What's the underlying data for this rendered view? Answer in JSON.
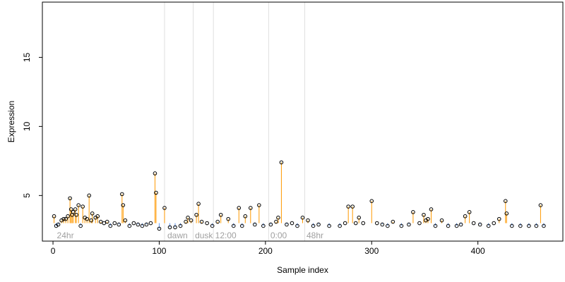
{
  "chart_data": {
    "type": "scatter",
    "title": "",
    "xlabel": "Sample index",
    "ylabel": "Expression",
    "xlim": [
      -10,
      480
    ],
    "ylim": [
      1.7,
      19
    ],
    "x_ticks": [
      0,
      100,
      200,
      300,
      400
    ],
    "y_ticks": [
      5,
      10,
      15
    ],
    "baseline": 3.0,
    "colors": {
      "above_stem": "#ff9900",
      "below_stem": "#6699ee",
      "point_edge": "#000000",
      "region_line": "#e0e0e0"
    },
    "region_labels": [
      {
        "x": 3,
        "text": "24hr"
      },
      {
        "x": 107,
        "text": "dawn"
      },
      {
        "x": 133,
        "text": "dusk"
      },
      {
        "x": 152,
        "text": "12:00"
      },
      {
        "x": 204,
        "text": "0:00"
      },
      {
        "x": 238,
        "text": "48hr"
      }
    ],
    "region_lines": [
      105,
      132,
      151,
      203,
      237
    ],
    "highlight_points": [
      {
        "x": 1,
        "y": 3.5
      },
      {
        "x": 16,
        "y": 4.8
      },
      {
        "x": 17,
        "y": 4.0
      },
      {
        "x": 19,
        "y": 3.8
      },
      {
        "x": 21,
        "y": 4.0
      },
      {
        "x": 24,
        "y": 4.3
      },
      {
        "x": 28,
        "y": 4.2
      },
      {
        "x": 34,
        "y": 5.0
      },
      {
        "x": 37,
        "y": 3.7
      },
      {
        "x": 65,
        "y": 5.1
      },
      {
        "x": 66,
        "y": 4.3
      },
      {
        "x": 96,
        "y": 6.6
      },
      {
        "x": 97,
        "y": 5.2
      },
      {
        "x": 105,
        "y": 4.1
      },
      {
        "x": 127,
        "y": 3.4
      },
      {
        "x": 135,
        "y": 3.6
      },
      {
        "x": 137,
        "y": 4.4
      },
      {
        "x": 158,
        "y": 3.6
      },
      {
        "x": 175,
        "y": 4.1
      },
      {
        "x": 181,
        "y": 3.5
      },
      {
        "x": 186,
        "y": 4.1
      },
      {
        "x": 194,
        "y": 4.3
      },
      {
        "x": 212,
        "y": 3.4
      },
      {
        "x": 215,
        "y": 7.4
      },
      {
        "x": 235,
        "y": 3.4
      },
      {
        "x": 278,
        "y": 4.2
      },
      {
        "x": 282,
        "y": 4.2
      },
      {
        "x": 300,
        "y": 4.6
      },
      {
        "x": 339,
        "y": 3.8
      },
      {
        "x": 349,
        "y": 3.6
      },
      {
        "x": 356,
        "y": 4.0
      },
      {
        "x": 388,
        "y": 3.5
      },
      {
        "x": 392,
        "y": 3.8
      },
      {
        "x": 426,
        "y": 4.6
      },
      {
        "x": 427,
        "y": 3.7
      },
      {
        "x": 459,
        "y": 4.3
      }
    ],
    "background_points": [
      {
        "x": 3,
        "y": 2.8
      },
      {
        "x": 5,
        "y": 2.9
      },
      {
        "x": 8,
        "y": 3.2
      },
      {
        "x": 10,
        "y": 3.3
      },
      {
        "x": 12,
        "y": 3.3
      },
      {
        "x": 14,
        "y": 3.5
      },
      {
        "x": 18,
        "y": 3.6
      },
      {
        "x": 22,
        "y": 3.6
      },
      {
        "x": 26,
        "y": 2.8
      },
      {
        "x": 30,
        "y": 3.4
      },
      {
        "x": 32,
        "y": 3.3
      },
      {
        "x": 36,
        "y": 3.2
      },
      {
        "x": 40,
        "y": 3.4
      },
      {
        "x": 42,
        "y": 3.5
      },
      {
        "x": 45,
        "y": 3.1
      },
      {
        "x": 48,
        "y": 3.0
      },
      {
        "x": 51,
        "y": 3.1
      },
      {
        "x": 54,
        "y": 2.8
      },
      {
        "x": 58,
        "y": 3.0
      },
      {
        "x": 62,
        "y": 2.9
      },
      {
        "x": 68,
        "y": 3.2
      },
      {
        "x": 72,
        "y": 2.8
      },
      {
        "x": 76,
        "y": 3.0
      },
      {
        "x": 80,
        "y": 2.9
      },
      {
        "x": 84,
        "y": 2.8
      },
      {
        "x": 88,
        "y": 2.9
      },
      {
        "x": 92,
        "y": 3.0
      },
      {
        "x": 100,
        "y": 2.6
      },
      {
        "x": 110,
        "y": 2.7
      },
      {
        "x": 115,
        "y": 2.7
      },
      {
        "x": 120,
        "y": 2.8
      },
      {
        "x": 125,
        "y": 3.1
      },
      {
        "x": 130,
        "y": 3.2
      },
      {
        "x": 140,
        "y": 3.1
      },
      {
        "x": 145,
        "y": 3.0
      },
      {
        "x": 150,
        "y": 2.8
      },
      {
        "x": 155,
        "y": 3.1
      },
      {
        "x": 165,
        "y": 3.3
      },
      {
        "x": 170,
        "y": 2.8
      },
      {
        "x": 178,
        "y": 2.8
      },
      {
        "x": 190,
        "y": 2.9
      },
      {
        "x": 198,
        "y": 2.8
      },
      {
        "x": 205,
        "y": 2.9
      },
      {
        "x": 210,
        "y": 3.1
      },
      {
        "x": 220,
        "y": 2.9
      },
      {
        "x": 225,
        "y": 3.0
      },
      {
        "x": 230,
        "y": 2.8
      },
      {
        "x": 240,
        "y": 3.2
      },
      {
        "x": 245,
        "y": 2.8
      },
      {
        "x": 250,
        "y": 2.9
      },
      {
        "x": 260,
        "y": 2.8
      },
      {
        "x": 270,
        "y": 2.8
      },
      {
        "x": 275,
        "y": 3.0
      },
      {
        "x": 285,
        "y": 3.0
      },
      {
        "x": 288,
        "y": 3.4
      },
      {
        "x": 292,
        "y": 3.0
      },
      {
        "x": 305,
        "y": 3.0
      },
      {
        "x": 310,
        "y": 2.9
      },
      {
        "x": 315,
        "y": 2.8
      },
      {
        "x": 320,
        "y": 3.1
      },
      {
        "x": 328,
        "y": 2.8
      },
      {
        "x": 335,
        "y": 2.9
      },
      {
        "x": 345,
        "y": 3.0
      },
      {
        "x": 351,
        "y": 3.2
      },
      {
        "x": 353,
        "y": 3.3
      },
      {
        "x": 360,
        "y": 2.8
      },
      {
        "x": 366,
        "y": 3.2
      },
      {
        "x": 372,
        "y": 2.8
      },
      {
        "x": 380,
        "y": 2.8
      },
      {
        "x": 384,
        "y": 2.9
      },
      {
        "x": 396,
        "y": 3.0
      },
      {
        "x": 402,
        "y": 2.9
      },
      {
        "x": 410,
        "y": 2.8
      },
      {
        "x": 415,
        "y": 3.0
      },
      {
        "x": 420,
        "y": 3.3
      },
      {
        "x": 432,
        "y": 2.8
      },
      {
        "x": 440,
        "y": 2.8
      },
      {
        "x": 448,
        "y": 2.8
      },
      {
        "x": 455,
        "y": 2.8
      },
      {
        "x": 462,
        "y": 2.8
      }
    ]
  }
}
